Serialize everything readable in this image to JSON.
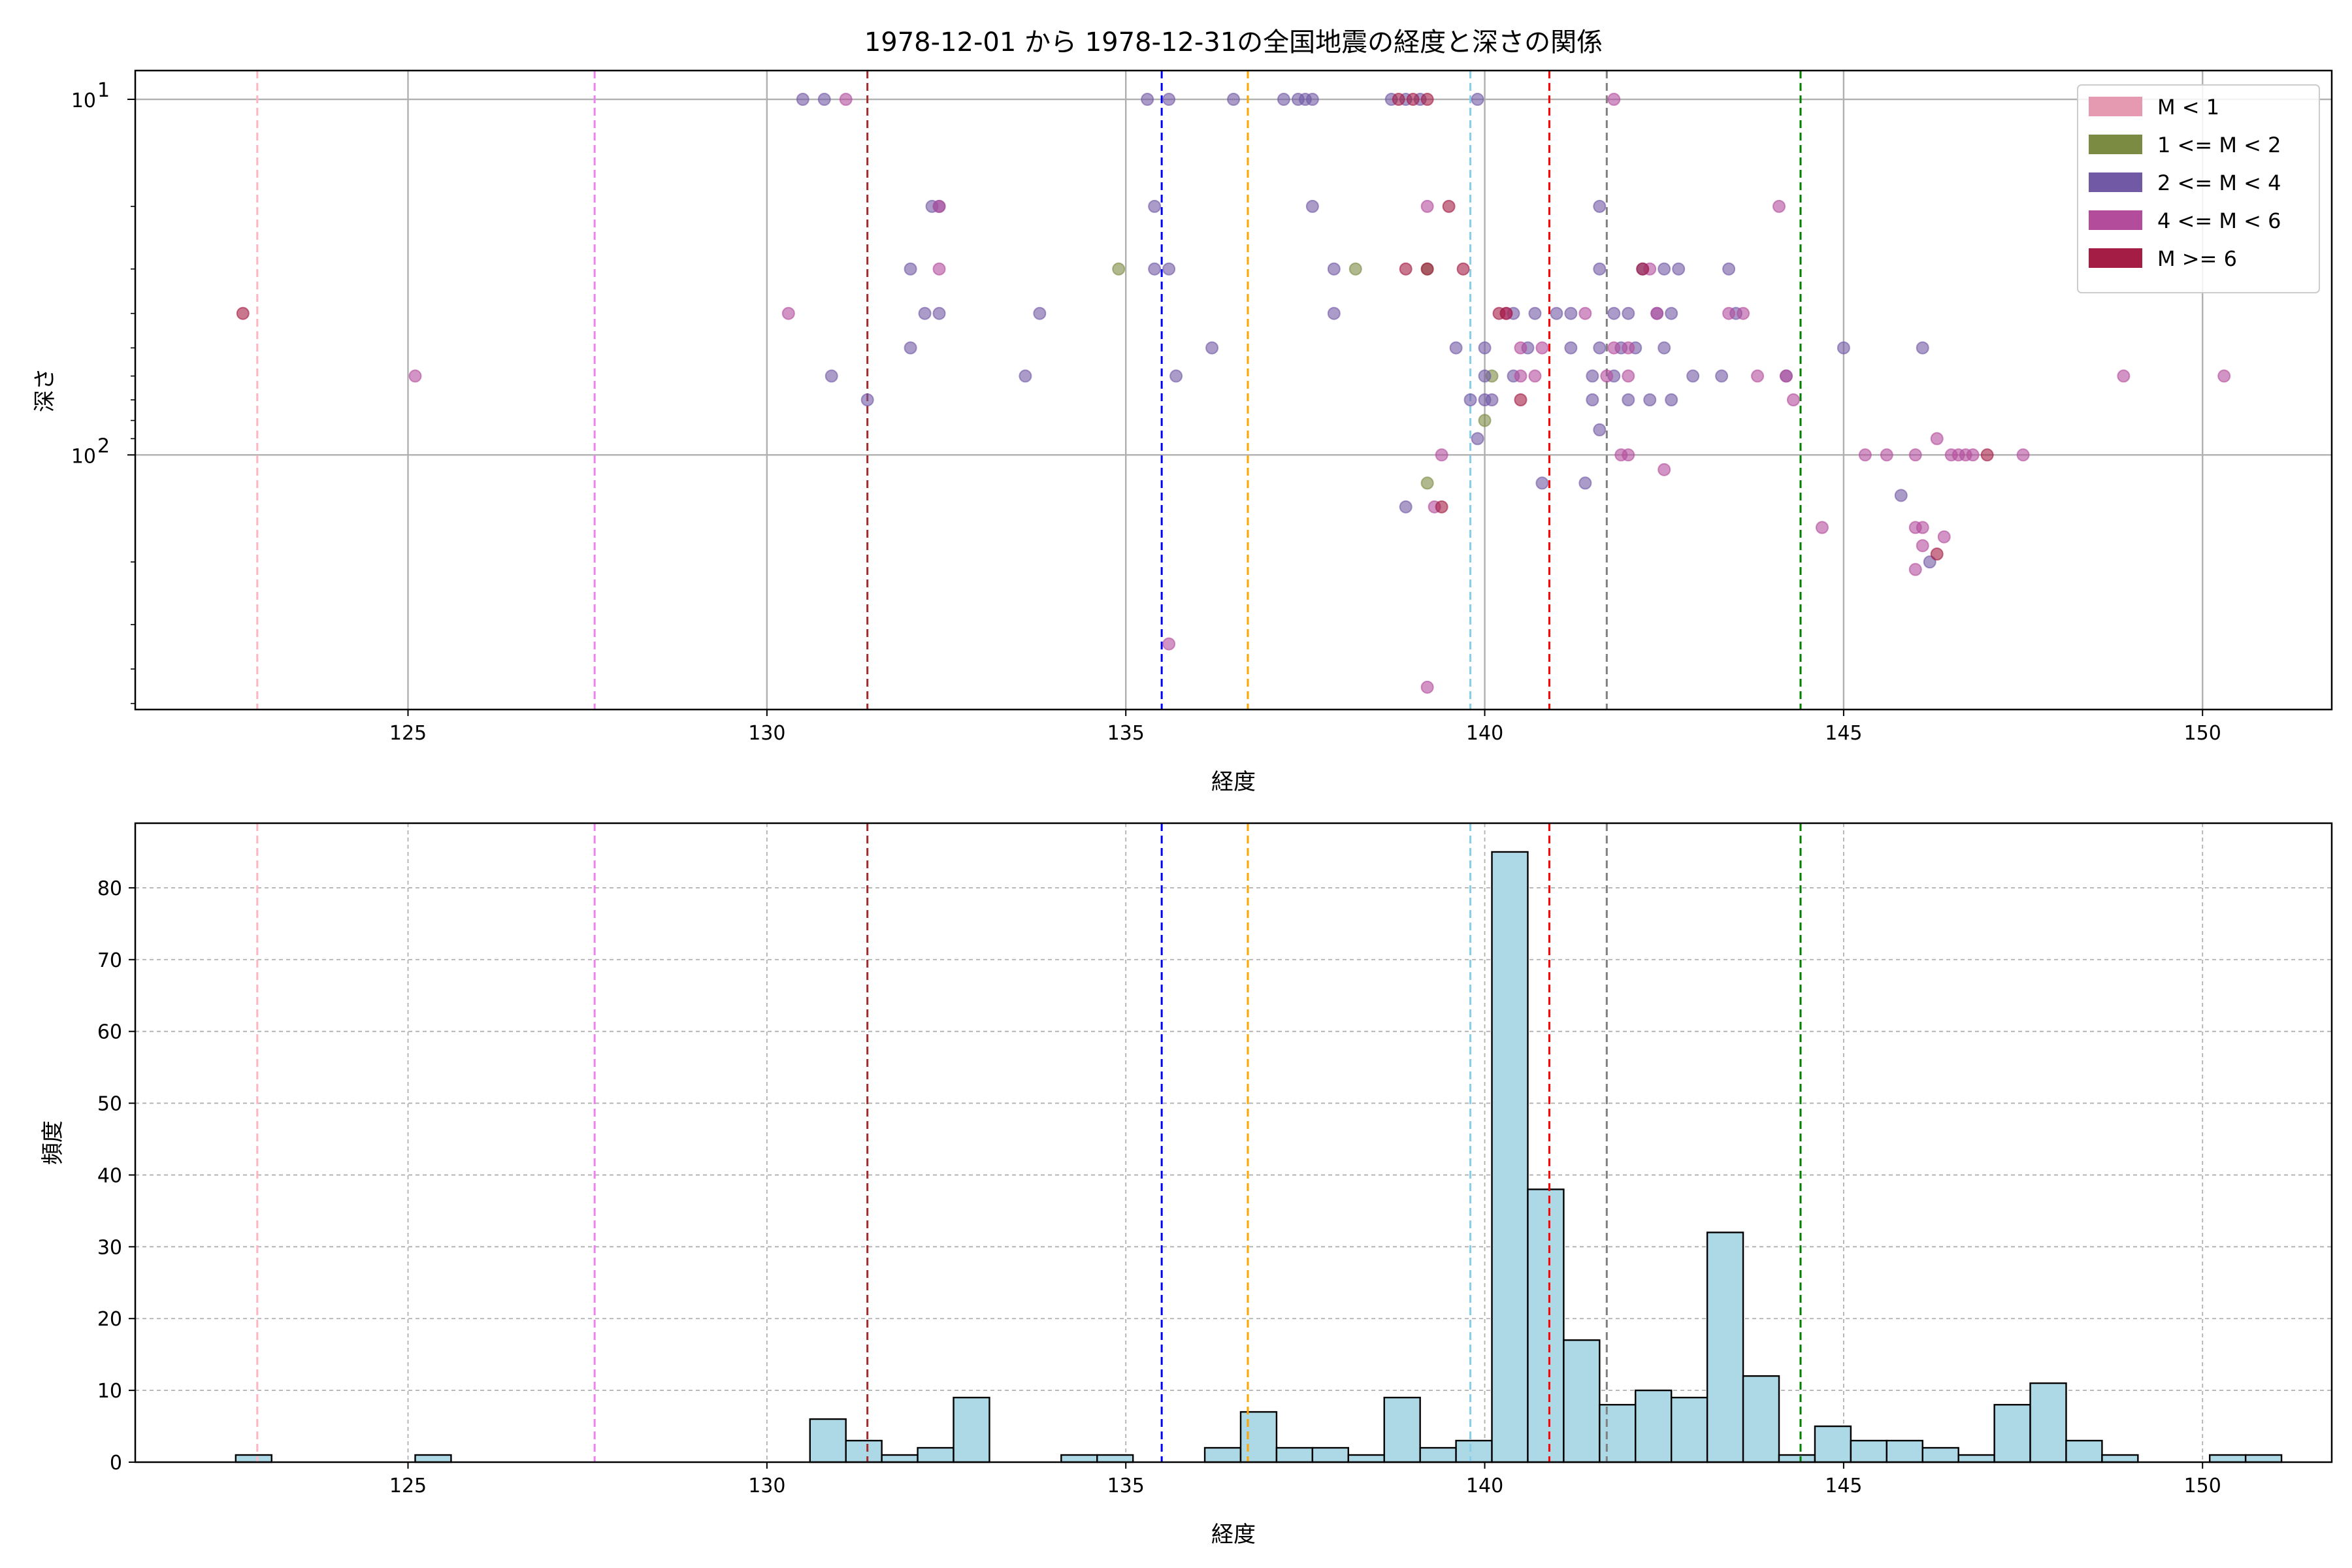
{
  "chart_data": [
    {
      "type": "scatter",
      "title": "1978-12-01 から 1978-12-31の全国地震の経度と深さの関係",
      "xlabel": "経度",
      "ylabel": "深さ",
      "xlim": [
        121.2,
        151.8
      ],
      "ylim": [
        520,
        8.3
      ],
      "yscale": "log",
      "y_inverted": true,
      "xticks": [
        125,
        130,
        135,
        140,
        145,
        150
      ],
      "yticks": [
        {
          "value": 10,
          "base": "10",
          "exp": "1"
        },
        {
          "value": 100,
          "base": "10",
          "exp": "2"
        }
      ],
      "grid": true,
      "legend_position": "top-right",
      "legend": [
        {
          "label": "M < 1",
          "color": "#e59ab2"
        },
        {
          "label": "1 <= M < 2",
          "color": "#7b8b42"
        },
        {
          "label": "2 <= M < 4",
          "color": "#7159a5"
        },
        {
          "label": "4 <= M < 6",
          "color": "#b44c9c"
        },
        {
          "label": "M >= 6",
          "color": "#a31d45"
        }
      ],
      "vlines": [
        {
          "x": 122.9,
          "color": "#ffb6c1"
        },
        {
          "x": 127.6,
          "color": "#ee82ee"
        },
        {
          "x": 131.4,
          "color": "#a52a2a"
        },
        {
          "x": 135.5,
          "color": "#0000ff"
        },
        {
          "x": 136.7,
          "color": "#ffa500"
        },
        {
          "x": 139.8,
          "color": "#87ceeb"
        },
        {
          "x": 140.9,
          "color": "#ff0000"
        },
        {
          "x": 141.7,
          "color": "#808080"
        },
        {
          "x": 144.4,
          "color": "#008000"
        }
      ],
      "series": [
        {
          "name": "1 <= M < 2",
          "color": "#7b8b42",
          "points": [
            [
              134.9,
              30
            ],
            [
              138.2,
              30
            ],
            [
              139.2,
              30
            ],
            [
              140.1,
              60
            ],
            [
              140.0,
              80
            ],
            [
              139.2,
              120
            ]
          ]
        },
        {
          "name": "2 <= M < 4",
          "color": "#7159a5",
          "points": [
            [
              130.5,
              10
            ],
            [
              130.8,
              10
            ],
            [
              135.3,
              10
            ],
            [
              135.6,
              10
            ],
            [
              136.5,
              10
            ],
            [
              137.2,
              10
            ],
            [
              137.4,
              10
            ],
            [
              137.5,
              10
            ],
            [
              137.6,
              10
            ],
            [
              138.7,
              10
            ],
            [
              138.9,
              10
            ],
            [
              139.1,
              10
            ],
            [
              139.9,
              10
            ],
            [
              135.4,
              20
            ],
            [
              137.6,
              20
            ],
            [
              141.6,
              20
            ],
            [
              132.4,
              20
            ],
            [
              132.3,
              20
            ],
            [
              132.0,
              30
            ],
            [
              135.4,
              30
            ],
            [
              135.6,
              30
            ],
            [
              137.9,
              30
            ],
            [
              141.6,
              30
            ],
            [
              142.2,
              30
            ],
            [
              142.5,
              30
            ],
            [
              142.7,
              30
            ],
            [
              143.4,
              30
            ],
            [
              132.2,
              40
            ],
            [
              132.4,
              40
            ],
            [
              133.8,
              40
            ],
            [
              137.9,
              40
            ],
            [
              140.4,
              40
            ],
            [
              140.7,
              40
            ],
            [
              141.0,
              40
            ],
            [
              141.2,
              40
            ],
            [
              141.8,
              40
            ],
            [
              142.0,
              40
            ],
            [
              142.4,
              40
            ],
            [
              142.6,
              40
            ],
            [
              143.5,
              40
            ],
            [
              132.0,
              50
            ],
            [
              136.2,
              50
            ],
            [
              139.6,
              50
            ],
            [
              140.0,
              50
            ],
            [
              140.6,
              50
            ],
            [
              141.2,
              50
            ],
            [
              141.6,
              50
            ],
            [
              141.9,
              50
            ],
            [
              142.1,
              50
            ],
            [
              142.5,
              50
            ],
            [
              145.0,
              50
            ],
            [
              146.1,
              50
            ],
            [
              130.9,
              60
            ],
            [
              133.6,
              60
            ],
            [
              135.7,
              60
            ],
            [
              140.0,
              60
            ],
            [
              140.4,
              60
            ],
            [
              141.5,
              60
            ],
            [
              141.8,
              60
            ],
            [
              142.9,
              60
            ],
            [
              143.3,
              60
            ],
            [
              144.2,
              60
            ],
            [
              131.4,
              70
            ],
            [
              139.8,
              70
            ],
            [
              140.0,
              70
            ],
            [
              140.1,
              70
            ],
            [
              141.5,
              70
            ],
            [
              142.0,
              70
            ],
            [
              142.3,
              70
            ],
            [
              142.6,
              70
            ],
            [
              139.9,
              90
            ],
            [
              141.6,
              85
            ],
            [
              140.8,
              120
            ],
            [
              141.4,
              120
            ],
            [
              138.9,
              140
            ],
            [
              145.8,
              130
            ],
            [
              146.2,
              200
            ]
          ]
        },
        {
          "name": "4 <= M < 6",
          "color": "#b44c9c",
          "points": [
            [
              131.1,
              10
            ],
            [
              141.8,
              10
            ],
            [
              132.4,
              20
            ],
            [
              139.2,
              20
            ],
            [
              144.1,
              20
            ],
            [
              132.4,
              30
            ],
            [
              142.3,
              30
            ],
            [
              130.3,
              40
            ],
            [
              140.3,
              40
            ],
            [
              141.4,
              40
            ],
            [
              142.4,
              40
            ],
            [
              143.4,
              40
            ],
            [
              143.6,
              40
            ],
            [
              140.5,
              50
            ],
            [
              140.8,
              50
            ],
            [
              141.8,
              50
            ],
            [
              142.0,
              50
            ],
            [
              125.1,
              60
            ],
            [
              140.5,
              60
            ],
            [
              140.7,
              60
            ],
            [
              141.7,
              60
            ],
            [
              142.0,
              60
            ],
            [
              143.8,
              60
            ],
            [
              144.2,
              60
            ],
            [
              148.9,
              60
            ],
            [
              150.3,
              60
            ],
            [
              144.3,
              70
            ],
            [
              139.4,
              100
            ],
            [
              141.9,
              100
            ],
            [
              142.0,
              100
            ],
            [
              145.3,
              100
            ],
            [
              145.6,
              100
            ],
            [
              146.0,
              100
            ],
            [
              146.5,
              100
            ],
            [
              146.6,
              100
            ],
            [
              146.7,
              100
            ],
            [
              146.8,
              100
            ],
            [
              147.5,
              100
            ],
            [
              146.3,
              90
            ],
            [
              142.5,
              110
            ],
            [
              139.3,
              140
            ],
            [
              144.7,
              160
            ],
            [
              146.0,
              160
            ],
            [
              146.1,
              160
            ],
            [
              146.4,
              170
            ],
            [
              146.1,
              180
            ],
            [
              146.0,
              210
            ],
            [
              135.6,
              340
            ],
            [
              139.2,
              450
            ]
          ]
        },
        {
          "name": "M >= 6",
          "color": "#a31d45",
          "points": [
            [
              122.7,
              40
            ],
            [
              138.8,
              10
            ],
            [
              139.0,
              10
            ],
            [
              139.2,
              10
            ],
            [
              139.5,
              20
            ],
            [
              138.9,
              30
            ],
            [
              139.2,
              30
            ],
            [
              139.7,
              30
            ],
            [
              142.2,
              30
            ],
            [
              140.2,
              40
            ],
            [
              140.3,
              40
            ],
            [
              140.5,
              70
            ],
            [
              147.0,
              100
            ],
            [
              139.4,
              140
            ],
            [
              146.3,
              190
            ]
          ]
        }
      ]
    },
    {
      "type": "bar",
      "title": "",
      "xlabel": "経度",
      "ylabel": "頻度",
      "xlim": [
        121.2,
        151.8
      ],
      "ylim": [
        0,
        89
      ],
      "xticks": [
        125,
        130,
        135,
        140,
        145,
        150
      ],
      "yticks": [
        0,
        10,
        20,
        30,
        40,
        50,
        60,
        70,
        80
      ],
      "grid": true,
      "bar_color": "#add8e6",
      "bin_start": 122.6,
      "bin_width": 0.5,
      "values": [
        1,
        0,
        0,
        0,
        0,
        1,
        0,
        0,
        0,
        0,
        0,
        0,
        0,
        0,
        0,
        0,
        6,
        3,
        1,
        2,
        9,
        0,
        0,
        1,
        1,
        0,
        0,
        2,
        7,
        2,
        2,
        1,
        9,
        2,
        3,
        85,
        38,
        17,
        8,
        10,
        9,
        32,
        12,
        1,
        5,
        3,
        3,
        2,
        1,
        8,
        11,
        3,
        1,
        0,
        0,
        1,
        1,
        0,
        0,
        0,
        1
      ],
      "vlines": [
        {
          "x": 122.9,
          "color": "#ffb6c1"
        },
        {
          "x": 127.6,
          "color": "#ee82ee"
        },
        {
          "x": 131.4,
          "color": "#a52a2a"
        },
        {
          "x": 135.5,
          "color": "#0000ff"
        },
        {
          "x": 136.7,
          "color": "#ffa500"
        },
        {
          "x": 139.8,
          "color": "#87ceeb"
        },
        {
          "x": 140.9,
          "color": "#ff0000"
        },
        {
          "x": 141.7,
          "color": "#808080"
        },
        {
          "x": 144.4,
          "color": "#008000"
        }
      ]
    }
  ]
}
